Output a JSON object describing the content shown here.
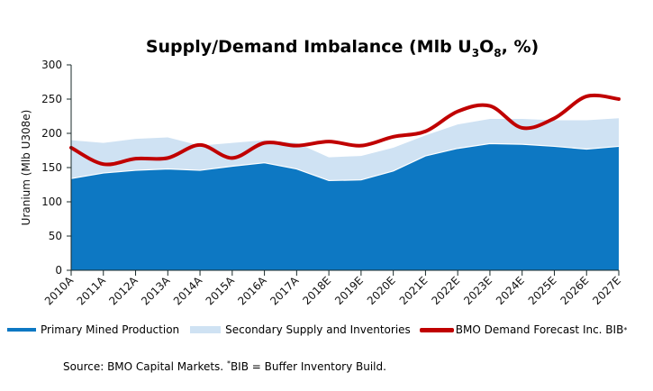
{
  "chart_data": {
    "type": "area",
    "title": "Supply/Demand Imbalance (Mlb U3O8, %)",
    "title_parts": {
      "pre": "Supply/Demand Imbalance (Mlb U",
      "sub1": "3",
      "mid": "O",
      "sub2": "8",
      "post": ", %)"
    },
    "xlabel": "",
    "ylabel": "Uranium (Mlb U308e)",
    "ylim": [
      0,
      300
    ],
    "yticks": [
      0,
      50,
      100,
      150,
      200,
      250,
      300
    ],
    "grid": false,
    "legend_position": "bottom",
    "categories": [
      "2010A",
      "2011A",
      "2012A",
      "2013A",
      "2014A",
      "2015A",
      "2016A",
      "2017A",
      "2018E",
      "2019E",
      "2020E",
      "2021E",
      "2022E",
      "2023E",
      "2024E",
      "2025E",
      "2026E",
      "2027E"
    ],
    "series": [
      {
        "name": "Primary Mined Production",
        "kind": "area",
        "color": "#0d78c3",
        "values": [
          134,
          142,
          146,
          148,
          146,
          152,
          157,
          148,
          131,
          132,
          145,
          167,
          178,
          185,
          184,
          181,
          177,
          181
        ]
      },
      {
        "name": "Secondary Supply and Inventories",
        "kind": "stacked-area",
        "color": "#cfe2f3",
        "values": [
          56,
          44,
          46,
          46,
          36,
          34,
          33,
          38,
          34,
          35,
          34,
          30,
          35,
          36,
          37,
          38,
          42,
          41
        ]
      },
      {
        "name": "BMO Demand Forecast Inc. BIB*",
        "kind": "line",
        "color": "#c00000",
        "values": [
          179,
          155,
          163,
          164,
          183,
          164,
          186,
          182,
          188,
          182,
          195,
          203,
          232,
          240,
          208,
          222,
          254,
          250
        ]
      }
    ]
  },
  "legend": {
    "items": [
      {
        "label": "Primary Mined Production"
      },
      {
        "label": "Secondary Supply and Inventories"
      },
      {
        "label": "BMO Demand Forecast Inc. BIB",
        "sup": "*"
      }
    ]
  },
  "source": {
    "pre": "Source: BMO Capital Markets.  ",
    "sup": "*",
    "post": "BIB  = Buffer Inventory Build."
  }
}
